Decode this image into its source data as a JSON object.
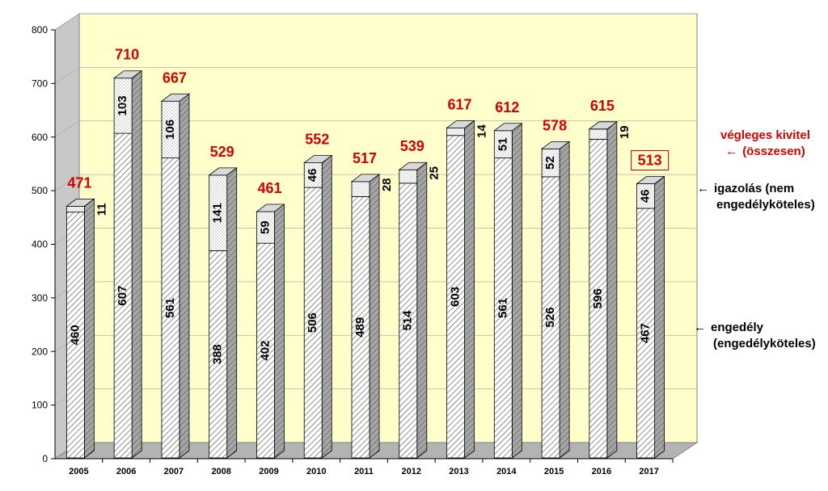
{
  "chart_data": {
    "type": "bar",
    "stacked": true,
    "three_d": true,
    "categories": [
      "2005",
      "2006",
      "2007",
      "2008",
      "2009",
      "2010",
      "2011",
      "2012",
      "2013",
      "2014",
      "2015",
      "2016",
      "2017"
    ],
    "series": [
      {
        "name": "engedély (engedélyköteles)",
        "values": [
          460,
          607,
          561,
          388,
          402,
          506,
          489,
          514,
          603,
          561,
          526,
          596,
          467
        ]
      },
      {
        "name": "igazolás (nem engedélyköteles",
        "values": [
          11,
          103,
          106,
          141,
          59,
          46,
          28,
          25,
          14,
          51,
          52,
          19,
          46
        ]
      }
    ],
    "totals": [
      471,
      710,
      667,
      529,
      461,
      552,
      517,
      539,
      617,
      612,
      578,
      615,
      513
    ],
    "totals_label": "végleges kivitel (összesen)",
    "ylim": [
      0,
      800
    ],
    "yticks": [
      0,
      100,
      200,
      300,
      400,
      500,
      600,
      700,
      800
    ],
    "grid": true,
    "colors": {
      "wall": "#ffffcc",
      "floor": "#b3b3b3",
      "total_label": "#d40000",
      "bar_fill": "#ffffff",
      "bar_side": "#a6a6a6",
      "bar_top": "#d9d9d9"
    }
  },
  "legend": {
    "total_line1": "végleges kivitel",
    "total_line2": "(összesen)",
    "igazolas_line1": "igazolás (nem",
    "igazolas_line2": "engedélyköteles)",
    "engedely_line1": "engedély",
    "engedely_line2": "(engedélyköteles)",
    "arrow": "←"
  }
}
